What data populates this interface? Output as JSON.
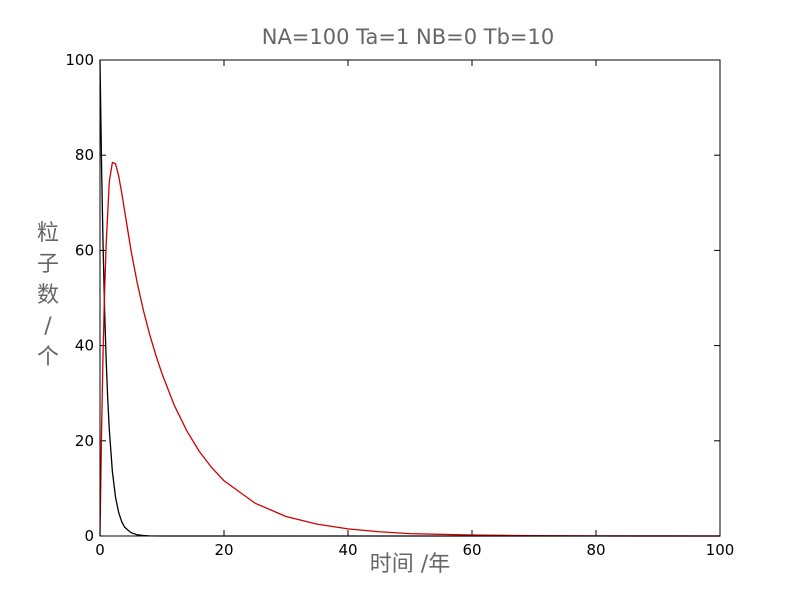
{
  "chart_data": {
    "type": "line",
    "title": "NA=100 Ta=1 NB=0 Tb=10",
    "xlabel": "时间 /年",
    "ylabel": "粒子数/个",
    "xlim": [
      0,
      100
    ],
    "ylim": [
      0,
      100
    ],
    "x_ticks": [
      "0",
      "20",
      "40",
      "60",
      "80",
      "100"
    ],
    "y_ticks": [
      "0",
      "20",
      "40",
      "60",
      "80",
      "100"
    ],
    "grid": false,
    "legend": "none",
    "series": [
      {
        "color": "#000000",
        "x": [
          0,
          0.25,
          0.5,
          0.75,
          1,
          1.25,
          1.5,
          2,
          2.5,
          3,
          3.5,
          4,
          5,
          6,
          7,
          8,
          10,
          15,
          20,
          30,
          50,
          100
        ],
        "values": [
          100,
          77.9,
          60.7,
          47.2,
          36.8,
          28.7,
          22.3,
          13.5,
          8.2,
          5.0,
          3.0,
          1.8,
          0.7,
          0.25,
          0.09,
          0.03,
          0.005,
          0,
          0,
          0,
          0,
          0
        ]
      },
      {
        "color": "#cc0000",
        "x": [
          0,
          0.25,
          0.5,
          0.75,
          1,
          1.5,
          2,
          2.5,
          3,
          3.5,
          4,
          5,
          6,
          7,
          8,
          9,
          10,
          12,
          14,
          16,
          18,
          20,
          25,
          30,
          35,
          40,
          45,
          50,
          60,
          70,
          80,
          90,
          100
        ],
        "values": [
          0,
          22.0,
          38.9,
          51.8,
          61.4,
          74.5,
          78.5,
          78.2,
          75.7,
          72.1,
          68.1,
          60.0,
          53.2,
          47.4,
          42.4,
          38.0,
          34.1,
          27.4,
          22.1,
          17.8,
          14.4,
          11.6,
          6.9,
          4.1,
          2.5,
          1.5,
          0.9,
          0.5,
          0.2,
          0.07,
          0.03,
          0.01,
          0.005
        ]
      }
    ]
  }
}
